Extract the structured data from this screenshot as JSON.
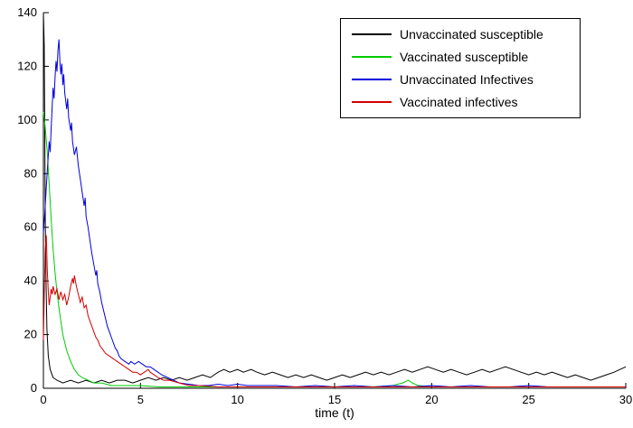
{
  "chart_data": {
    "type": "line",
    "title": "",
    "xlabel": "time (t)",
    "ylabel": "",
    "xlim": [
      0,
      30
    ],
    "ylim": [
      0,
      140
    ],
    "xticks": [
      0,
      5,
      10,
      15,
      20,
      25,
      30
    ],
    "yticks": [
      0,
      20,
      40,
      60,
      80,
      100,
      120,
      140
    ],
    "grid": false,
    "legend_position": "northeast",
    "series": [
      {
        "name": "Unvaccinated susceptible",
        "color": "#000000",
        "points": [
          [
            0,
            140
          ],
          [
            0.04,
            128
          ],
          [
            0.07,
            96
          ],
          [
            0.1,
            62
          ],
          [
            0.14,
            38
          ],
          [
            0.18,
            22
          ],
          [
            0.25,
            12
          ],
          [
            0.35,
            7
          ],
          [
            0.5,
            4
          ],
          [
            0.7,
            3
          ],
          [
            1,
            2
          ],
          [
            1.4,
            3
          ],
          [
            1.8,
            2
          ],
          [
            2.2,
            3
          ],
          [
            2.6,
            2
          ],
          [
            3,
            3
          ],
          [
            3.4,
            2
          ],
          [
            3.8,
            3
          ],
          [
            4.2,
            3
          ],
          [
            4.6,
            2
          ],
          [
            5,
            3
          ],
          [
            5.4,
            4
          ],
          [
            5.8,
            3
          ],
          [
            6.2,
            4
          ],
          [
            6.6,
            3
          ],
          [
            7,
            4
          ],
          [
            7.4,
            3
          ],
          [
            7.8,
            4
          ],
          [
            8.2,
            5
          ],
          [
            8.6,
            4
          ],
          [
            9,
            6
          ],
          [
            9.3,
            7
          ],
          [
            9.6,
            6
          ],
          [
            10,
            7
          ],
          [
            10.3,
            6
          ],
          [
            10.7,
            7
          ],
          [
            11,
            6
          ],
          [
            11.4,
            5
          ],
          [
            11.8,
            6
          ],
          [
            12.2,
            5
          ],
          [
            12.6,
            4
          ],
          [
            13,
            5
          ],
          [
            13.4,
            4
          ],
          [
            13.8,
            5
          ],
          [
            14.2,
            4
          ],
          [
            14.6,
            3
          ],
          [
            15,
            4
          ],
          [
            15.4,
            5
          ],
          [
            15.8,
            4
          ],
          [
            16.2,
            5
          ],
          [
            16.6,
            6
          ],
          [
            17,
            5
          ],
          [
            17.4,
            6
          ],
          [
            17.8,
            5
          ],
          [
            18.2,
            6
          ],
          [
            18.6,
            7
          ],
          [
            19,
            6
          ],
          [
            19.4,
            7
          ],
          [
            19.8,
            8
          ],
          [
            20.2,
            7
          ],
          [
            20.6,
            6
          ],
          [
            21,
            7
          ],
          [
            21.4,
            6
          ],
          [
            21.8,
            5
          ],
          [
            22.2,
            6
          ],
          [
            22.6,
            7
          ],
          [
            23,
            6
          ],
          [
            23.4,
            7
          ],
          [
            23.8,
            8
          ],
          [
            24.2,
            7
          ],
          [
            24.6,
            6
          ],
          [
            25,
            5
          ],
          [
            25.4,
            6
          ],
          [
            25.8,
            5
          ],
          [
            26.2,
            6
          ],
          [
            26.6,
            5
          ],
          [
            27,
            4
          ],
          [
            27.4,
            5
          ],
          [
            27.8,
            4
          ],
          [
            28.2,
            3
          ],
          [
            28.6,
            4
          ],
          [
            29,
            5
          ],
          [
            29.4,
            6
          ],
          [
            29.7,
            7
          ],
          [
            30,
            8
          ]
        ]
      },
      {
        "name": "Vaccinated susceptible",
        "color": "#00CC00",
        "points": [
          [
            0,
            103
          ],
          [
            0.1,
            97
          ],
          [
            0.2,
            88
          ],
          [
            0.3,
            76
          ],
          [
            0.4,
            63
          ],
          [
            0.5,
            52
          ],
          [
            0.6,
            43
          ],
          [
            0.7,
            36
          ],
          [
            0.8,
            30
          ],
          [
            0.9,
            25
          ],
          [
            1,
            20
          ],
          [
            1.1,
            17
          ],
          [
            1.2,
            14
          ],
          [
            1.4,
            10
          ],
          [
            1.6,
            7
          ],
          [
            1.8,
            5
          ],
          [
            2,
            4
          ],
          [
            2.3,
            3
          ],
          [
            2.6,
            2
          ],
          [
            3,
            2
          ],
          [
            3.5,
            1
          ],
          [
            4,
            1
          ],
          [
            5,
            1
          ],
          [
            6,
            0.5
          ],
          [
            7,
            0.5
          ],
          [
            8,
            0.5
          ],
          [
            9,
            0.5
          ],
          [
            10,
            0.5
          ],
          [
            11,
            0.5
          ],
          [
            12,
            0.5
          ],
          [
            13,
            0.5
          ],
          [
            14,
            0.5
          ],
          [
            15,
            0.5
          ],
          [
            16,
            0.5
          ],
          [
            17,
            0.5
          ],
          [
            18,
            1
          ],
          [
            18.5,
            2
          ],
          [
            18.8,
            3
          ],
          [
            19,
            2
          ],
          [
            19.3,
            1
          ],
          [
            20,
            0.5
          ],
          [
            21,
            0.5
          ],
          [
            22,
            0.5
          ],
          [
            23,
            0.5
          ],
          [
            24,
            0.5
          ],
          [
            25,
            0.5
          ],
          [
            26,
            0.5
          ],
          [
            27,
            0.5
          ],
          [
            28,
            0.5
          ],
          [
            29,
            0.5
          ],
          [
            30,
            0.5
          ]
        ]
      },
      {
        "name": "Unvaccinated Infectives",
        "color": "#0000E0",
        "points": [
          [
            0,
            58
          ],
          [
            0.08,
            66
          ],
          [
            0.15,
            75
          ],
          [
            0.22,
            83
          ],
          [
            0.3,
            92
          ],
          [
            0.35,
            88
          ],
          [
            0.4,
            97
          ],
          [
            0.45,
            105
          ],
          [
            0.5,
            112
          ],
          [
            0.55,
            108
          ],
          [
            0.6,
            116
          ],
          [
            0.65,
            122
          ],
          [
            0.7,
            118
          ],
          [
            0.75,
            126
          ],
          [
            0.8,
            130
          ],
          [
            0.85,
            122
          ],
          [
            0.9,
            117
          ],
          [
            0.95,
            121
          ],
          [
            1,
            113
          ],
          [
            1.05,
            117
          ],
          [
            1.1,
            110
          ],
          [
            1.2,
            104
          ],
          [
            1.25,
            108
          ],
          [
            1.3,
            101
          ],
          [
            1.4,
            96
          ],
          [
            1.45,
            99
          ],
          [
            1.5,
            92
          ],
          [
            1.6,
            87
          ],
          [
            1.7,
            90
          ],
          [
            1.8,
            83
          ],
          [
            1.9,
            78
          ],
          [
            2,
            73
          ],
          [
            2.1,
            68
          ],
          [
            2.15,
            71
          ],
          [
            2.2,
            64
          ],
          [
            2.3,
            60
          ],
          [
            2.4,
            55
          ],
          [
            2.5,
            50
          ],
          [
            2.6,
            46
          ],
          [
            2.7,
            42
          ],
          [
            2.75,
            44
          ],
          [
            2.8,
            39
          ],
          [
            2.9,
            36
          ],
          [
            3,
            32
          ],
          [
            3.1,
            29
          ],
          [
            3.2,
            26
          ],
          [
            3.3,
            23
          ],
          [
            3.4,
            21
          ],
          [
            3.5,
            19
          ],
          [
            3.6,
            17
          ],
          [
            3.7,
            15
          ],
          [
            3.8,
            14
          ],
          [
            3.9,
            12
          ],
          [
            4,
            11
          ],
          [
            4.2,
            10
          ],
          [
            4.4,
            9
          ],
          [
            4.5,
            10
          ],
          [
            4.7,
            9
          ],
          [
            4.9,
            10
          ],
          [
            5.1,
            9
          ],
          [
            5.3,
            8
          ],
          [
            5.5,
            8
          ],
          [
            5.7,
            7
          ],
          [
            5.9,
            6
          ],
          [
            6.1,
            5
          ],
          [
            6.4,
            4
          ],
          [
            6.7,
            3
          ],
          [
            7,
            2
          ],
          [
            7.5,
            1.5
          ],
          [
            8,
            1
          ],
          [
            8.5,
            1
          ],
          [
            9,
            1.5
          ],
          [
            9.5,
            1
          ],
          [
            10,
            1.5
          ],
          [
            10.5,
            1
          ],
          [
            11,
            1
          ],
          [
            12,
            1
          ],
          [
            13,
            0.5
          ],
          [
            14,
            1
          ],
          [
            15,
            0.5
          ],
          [
            16,
            1
          ],
          [
            17,
            0.5
          ],
          [
            18,
            1
          ],
          [
            19,
            0.5
          ],
          [
            20,
            1
          ],
          [
            21,
            0.5
          ],
          [
            22,
            1
          ],
          [
            23,
            0.5
          ],
          [
            24,
            0.5
          ],
          [
            25,
            1
          ],
          [
            26,
            0.5
          ],
          [
            27,
            0.5
          ],
          [
            28,
            0.5
          ],
          [
            29,
            0.5
          ],
          [
            30,
            0.5
          ]
        ]
      },
      {
        "name": "Vaccinated infectives",
        "color": "#D40000",
        "points": [
          [
            0,
            18
          ],
          [
            0.05,
            38
          ],
          [
            0.1,
            52
          ],
          [
            0.15,
            57
          ],
          [
            0.2,
            44
          ],
          [
            0.25,
            36
          ],
          [
            0.3,
            31
          ],
          [
            0.35,
            34
          ],
          [
            0.4,
            37
          ],
          [
            0.45,
            35
          ],
          [
            0.5,
            38
          ],
          [
            0.6,
            35
          ],
          [
            0.7,
            37
          ],
          [
            0.8,
            33
          ],
          [
            0.9,
            36
          ],
          [
            1,
            33
          ],
          [
            1.1,
            35
          ],
          [
            1.2,
            31
          ],
          [
            1.3,
            34
          ],
          [
            1.4,
            38
          ],
          [
            1.5,
            41
          ],
          [
            1.55,
            39
          ],
          [
            1.6,
            42
          ],
          [
            1.7,
            38
          ],
          [
            1.8,
            35
          ],
          [
            1.9,
            32
          ],
          [
            2,
            34
          ],
          [
            2.1,
            30
          ],
          [
            2.2,
            31
          ],
          [
            2.3,
            27
          ],
          [
            2.4,
            25
          ],
          [
            2.5,
            23
          ],
          [
            2.6,
            21
          ],
          [
            2.7,
            19
          ],
          [
            2.8,
            18
          ],
          [
            2.9,
            16
          ],
          [
            3,
            15
          ],
          [
            3.2,
            13
          ],
          [
            3.4,
            12
          ],
          [
            3.6,
            11
          ],
          [
            3.8,
            10
          ],
          [
            4,
            9
          ],
          [
            4.2,
            8
          ],
          [
            4.4,
            7
          ],
          [
            4.6,
            6
          ],
          [
            4.8,
            6
          ],
          [
            5,
            5
          ],
          [
            5.2,
            6
          ],
          [
            5.4,
            7
          ],
          [
            5.5,
            6
          ],
          [
            5.7,
            5
          ],
          [
            5.9,
            4
          ],
          [
            6.2,
            3
          ],
          [
            6.5,
            3
          ],
          [
            7,
            2
          ],
          [
            7.5,
            1
          ],
          [
            8,
            1
          ],
          [
            9,
            0.5
          ],
          [
            10,
            0.5
          ],
          [
            11,
            0.5
          ],
          [
            12,
            0.5
          ],
          [
            13,
            0.5
          ],
          [
            14,
            0.5
          ],
          [
            15,
            0.5
          ],
          [
            16,
            0.5
          ],
          [
            17,
            0.5
          ],
          [
            18,
            0.5
          ],
          [
            19,
            0.5
          ],
          [
            20,
            0.5
          ],
          [
            21,
            0.5
          ],
          [
            22,
            0.5
          ],
          [
            23,
            0.5
          ],
          [
            24,
            0.5
          ],
          [
            25,
            0.5
          ],
          [
            26,
            0.5
          ],
          [
            27,
            0.5
          ],
          [
            28,
            0.5
          ],
          [
            29,
            0.5
          ],
          [
            30,
            0.5
          ]
        ]
      }
    ]
  }
}
